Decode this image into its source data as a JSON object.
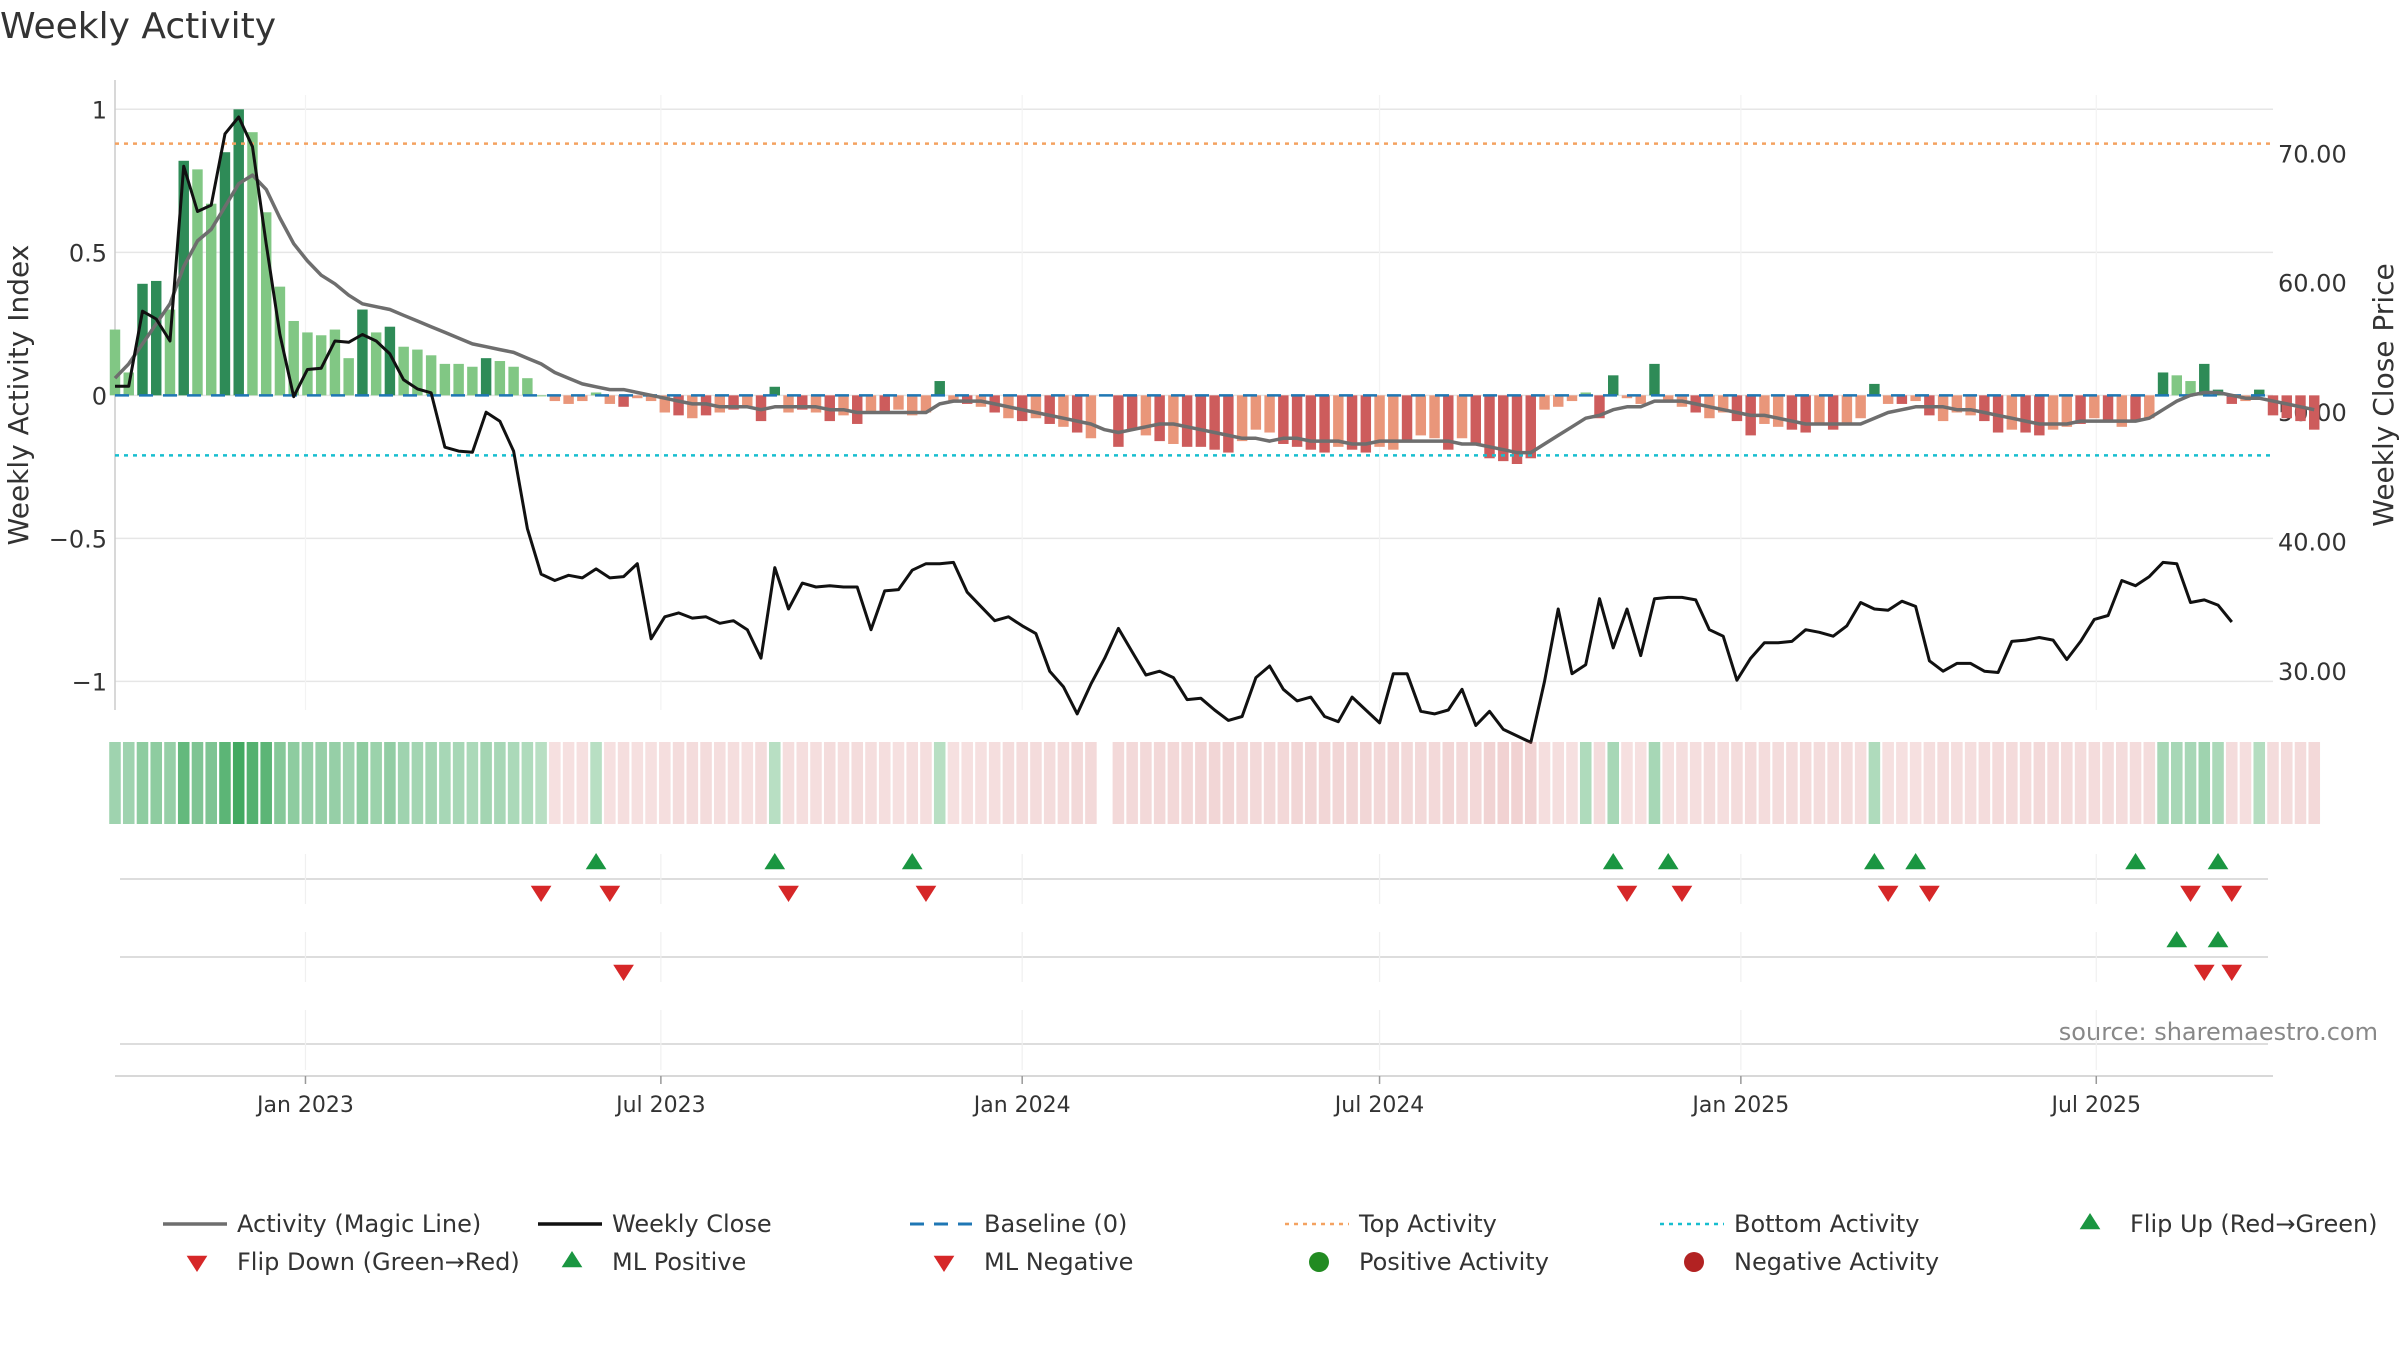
{
  "chart_data": {
    "type": "bar",
    "title": "Weekly Activity",
    "ylabel": "Weekly Activity Index",
    "y2label": "Weekly Close Price",
    "xlabel": "",
    "source": "source: sharemaestro.com",
    "ylim": [
      -1.1,
      1.05
    ],
    "y2lim": [
      27.0,
      74.5
    ],
    "yticks": [
      {
        "v": 1,
        "label": "1"
      },
      {
        "v": 0.5,
        "label": "0.5"
      },
      {
        "v": 0,
        "label": "0"
      },
      {
        "v": -0.5,
        "label": "−0.5"
      },
      {
        "v": -1,
        "label": "−1"
      }
    ],
    "y2ticks": [
      {
        "v": 70,
        "label": "70.00"
      },
      {
        "v": 60,
        "label": "60.00"
      },
      {
        "v": 50,
        "label": "50.00"
      },
      {
        "v": 40,
        "label": "40.00"
      },
      {
        "v": 30,
        "label": "30.00"
      }
    ],
    "x_range": [
      "2022-09-26",
      "2025-09-29"
    ],
    "xticks": [
      {
        "date": "2023-01-01",
        "label": "Jan 2023"
      },
      {
        "date": "2023-07-01",
        "label": "Jul 2023"
      },
      {
        "date": "2024-01-01",
        "label": "Jan 2024"
      },
      {
        "date": "2024-07-01",
        "label": "Jul 2024"
      },
      {
        "date": "2025-01-01",
        "label": "Jan 2025"
      },
      {
        "date": "2025-07-01",
        "label": "Jul 2025"
      }
    ],
    "start_date": "2022-09-26",
    "week_step_days": 7,
    "gap_weeks": [
      72
    ],
    "top_activity": 0.88,
    "bottom_activity": -0.21,
    "baseline": 0,
    "activity": [
      0.23,
      0.08,
      0.39,
      0.4,
      0.3,
      0.82,
      0.79,
      0.67,
      0.85,
      1.0,
      0.92,
      0.64,
      0.38,
      0.26,
      0.22,
      0.21,
      0.23,
      0.13,
      0.3,
      0.22,
      0.24,
      0.17,
      0.16,
      0.14,
      0.11,
      0.11,
      0.1,
      0.13,
      0.12,
      0.1,
      0.06,
      0.0,
      -0.02,
      -0.03,
      -0.02,
      0.01,
      -0.03,
      -0.04,
      -0.01,
      -0.02,
      -0.06,
      -0.07,
      -0.08,
      -0.07,
      -0.06,
      -0.05,
      -0.04,
      -0.09,
      0.03,
      -0.06,
      -0.05,
      -0.06,
      -0.09,
      -0.07,
      -0.1,
      -0.06,
      -0.06,
      -0.05,
      -0.07,
      -0.06,
      0.05,
      -0.02,
      -0.03,
      -0.04,
      -0.06,
      -0.08,
      -0.09,
      -0.08,
      -0.1,
      -0.11,
      -0.13,
      -0.15,
      -0.17,
      -0.18,
      -0.12,
      -0.14,
      -0.16,
      -0.17,
      -0.18,
      -0.18,
      -0.19,
      -0.2,
      -0.16,
      -0.12,
      -0.13,
      -0.17,
      -0.18,
      -0.19,
      -0.2,
      -0.18,
      -0.19,
      -0.2,
      -0.18,
      -0.19,
      -0.16,
      -0.14,
      -0.15,
      -0.19,
      -0.15,
      -0.17,
      -0.22,
      -0.23,
      -0.24,
      -0.22,
      -0.05,
      -0.04,
      -0.02,
      0.01,
      -0.08,
      0.07,
      -0.01,
      -0.03,
      0.11,
      -0.02,
      -0.04,
      -0.06,
      -0.08,
      -0.06,
      -0.09,
      -0.14,
      -0.1,
      -0.11,
      -0.12,
      -0.13,
      -0.1,
      -0.12,
      -0.1,
      -0.08,
      0.04,
      -0.03,
      -0.03,
      -0.02,
      -0.07,
      -0.09,
      -0.06,
      -0.07,
      -0.09,
      -0.13,
      -0.12,
      -0.13,
      -0.14,
      -0.12,
      -0.11,
      -0.1,
      -0.08,
      -0.09,
      -0.11,
      -0.09,
      -0.08,
      0.08,
      0.07,
      0.05,
      0.11,
      0.02,
      -0.03,
      -0.02,
      0.02,
      -0.07,
      -0.08,
      -0.09,
      -0.12
    ],
    "activity_category": [
      "pos",
      "pos",
      "ml_pos",
      "ml_pos",
      "pos",
      "ml_pos",
      "pos",
      "pos",
      "ml_pos",
      "ml_pos",
      "pos",
      "pos",
      "pos",
      "pos",
      "pos",
      "pos",
      "pos",
      "pos",
      "ml_pos",
      "pos",
      "ml_pos",
      "pos",
      "pos",
      "pos",
      "pos",
      "pos",
      "pos",
      "ml_pos",
      "pos",
      "pos",
      "pos",
      "pos",
      "neg",
      "neg",
      "neg",
      "pos",
      "neg",
      "ml_neg",
      "neg",
      "neg",
      "neg",
      "ml_neg",
      "neg",
      "ml_neg",
      "neg",
      "ml_neg",
      "neg",
      "ml_neg",
      "ml_pos",
      "neg",
      "ml_neg",
      "neg",
      "ml_neg",
      "neg",
      "ml_neg",
      "neg",
      "ml_neg",
      "neg",
      "neg",
      "neg",
      "ml_pos",
      "neg",
      "ml_neg",
      "neg",
      "ml_neg",
      "neg",
      "ml_neg",
      "neg",
      "ml_neg",
      "neg",
      "ml_neg",
      "neg",
      "ml_neg",
      "ml_neg",
      "ml_neg",
      "neg",
      "ml_neg",
      "neg",
      "ml_neg",
      "ml_neg",
      "ml_neg",
      "ml_neg",
      "neg",
      "neg",
      "neg",
      "ml_neg",
      "ml_neg",
      "ml_neg",
      "ml_neg",
      "neg",
      "ml_neg",
      "ml_neg",
      "neg",
      "neg",
      "ml_neg",
      "neg",
      "neg",
      "ml_neg",
      "neg",
      "ml_neg",
      "ml_neg",
      "ml_neg",
      "ml_neg",
      "ml_neg",
      "neg",
      "neg",
      "neg",
      "pos",
      "ml_neg",
      "ml_pos",
      "neg",
      "neg",
      "ml_pos",
      "neg",
      "neg",
      "ml_neg",
      "neg",
      "neg",
      "ml_neg",
      "ml_neg",
      "neg",
      "neg",
      "ml_neg",
      "ml_neg",
      "neg",
      "ml_neg",
      "neg",
      "neg",
      "ml_pos",
      "neg",
      "ml_neg",
      "neg",
      "ml_neg",
      "neg",
      "neg",
      "neg",
      "ml_neg",
      "ml_neg",
      "neg",
      "ml_neg",
      "ml_neg",
      "neg",
      "neg",
      "ml_neg",
      "neg",
      "ml_neg",
      "neg",
      "ml_neg",
      "neg",
      "ml_pos",
      "pos",
      "pos",
      "ml_pos",
      "ml_pos",
      "ml_neg",
      "neg",
      "ml_pos",
      "ml_neg",
      "ml_neg",
      "ml_neg",
      "ml_neg"
    ],
    "magic_line": [
      0.06,
      0.11,
      0.18,
      0.25,
      0.32,
      0.45,
      0.54,
      0.58,
      0.66,
      0.74,
      0.77,
      0.72,
      0.62,
      0.53,
      0.47,
      0.42,
      0.39,
      0.35,
      0.32,
      0.31,
      0.3,
      0.28,
      0.26,
      0.24,
      0.22,
      0.2,
      0.18,
      0.17,
      0.16,
      0.15,
      0.13,
      0.11,
      0.08,
      0.06,
      0.04,
      0.03,
      0.02,
      0.02,
      0.01,
      0.0,
      -0.01,
      -0.02,
      -0.03,
      -0.03,
      -0.04,
      -0.04,
      -0.04,
      -0.05,
      -0.04,
      -0.04,
      -0.04,
      -0.04,
      -0.05,
      -0.05,
      -0.06,
      -0.06,
      -0.06,
      -0.06,
      -0.06,
      -0.06,
      -0.03,
      -0.02,
      -0.02,
      -0.02,
      -0.03,
      -0.04,
      -0.05,
      -0.06,
      -0.07,
      -0.08,
      -0.09,
      -0.1,
      -0.12,
      -0.13,
      -0.12,
      -0.11,
      -0.1,
      -0.1,
      -0.11,
      -0.12,
      -0.13,
      -0.14,
      -0.15,
      -0.15,
      -0.16,
      -0.15,
      -0.15,
      -0.16,
      -0.16,
      -0.16,
      -0.17,
      -0.17,
      -0.16,
      -0.16,
      -0.16,
      -0.16,
      -0.16,
      -0.16,
      -0.17,
      -0.17,
      -0.18,
      -0.19,
      -0.2,
      -0.2,
      -0.17,
      -0.14,
      -0.11,
      -0.08,
      -0.07,
      -0.05,
      -0.04,
      -0.04,
      -0.02,
      -0.02,
      -0.02,
      -0.03,
      -0.04,
      -0.05,
      -0.06,
      -0.07,
      -0.07,
      -0.08,
      -0.09,
      -0.1,
      -0.1,
      -0.1,
      -0.1,
      -0.1,
      -0.08,
      -0.06,
      -0.05,
      -0.04,
      -0.04,
      -0.04,
      -0.05,
      -0.05,
      -0.06,
      -0.07,
      -0.08,
      -0.09,
      -0.1,
      -0.1,
      -0.1,
      -0.09,
      -0.09,
      -0.09,
      -0.09,
      -0.09,
      -0.08,
      -0.05,
      -0.02,
      0.0,
      0.01,
      0.01,
      0.0,
      -0.01,
      -0.01,
      -0.02,
      -0.03,
      -0.04,
      -0.05
    ],
    "weekly_close": [
      52.0,
      52.0,
      57.8,
      57.2,
      55.5,
      69.0,
      65.5,
      66.0,
      71.5,
      72.8,
      70.5,
      63.0,
      56.0,
      51.2,
      53.3,
      53.4,
      55.5,
      55.4,
      56.0,
      55.5,
      54.5,
      52.5,
      51.8,
      51.5,
      47.3,
      47.0,
      46.9,
      50.0,
      49.3,
      47.0,
      41.0,
      37.5,
      37.0,
      37.4,
      37.2,
      37.9,
      37.2,
      37.3,
      38.3,
      32.5,
      34.2,
      34.5,
      34.1,
      34.2,
      33.7,
      33.9,
      33.2,
      31.0,
      38.0,
      34.8,
      36.8,
      36.5,
      36.6,
      36.5,
      36.5,
      33.2,
      36.2,
      36.3,
      37.8,
      38.3,
      38.3,
      38.4,
      36.1,
      35.0,
      33.9,
      34.2,
      33.5,
      32.9,
      30.0,
      28.8,
      26.7,
      29.0,
      31.0,
      33.3,
      31.5,
      29.7,
      30.0,
      29.5,
      27.8,
      27.9,
      27.0,
      26.2,
      26.5,
      29.5,
      30.4,
      28.6,
      27.7,
      28.0,
      26.5,
      26.1,
      28.0,
      27.0,
      26.0,
      29.8,
      29.8,
      26.9,
      26.7,
      27.0,
      28.6,
      25.8,
      26.9,
      25.5,
      25.0,
      24.5,
      29.2,
      34.8,
      29.8,
      30.5,
      35.6,
      31.8,
      34.8,
      31.2,
      35.6,
      35.7,
      35.7,
      35.5,
      33.2,
      32.7,
      29.3,
      31.0,
      32.2,
      32.2,
      32.3,
      33.2,
      33.0,
      32.7,
      33.5,
      35.3,
      34.8,
      34.7,
      35.4,
      35.0,
      30.8,
      30.0,
      30.6,
      30.6,
      30.0,
      29.9,
      32.3,
      32.4,
      32.6,
      32.4,
      30.9,
      32.3,
      34.0,
      34.3,
      37.0,
      36.6,
      37.3,
      38.4,
      38.3,
      35.3,
      35.5,
      35.1,
      33.8
    ],
    "heat_strip": [
      0.35,
      0.35,
      0.45,
      0.45,
      0.4,
      0.7,
      0.55,
      0.55,
      0.75,
      0.9,
      0.8,
      0.75,
      0.5,
      0.45,
      0.4,
      0.4,
      0.4,
      0.35,
      0.45,
      0.38,
      0.42,
      0.35,
      0.33,
      0.32,
      0.3,
      0.3,
      0.28,
      0.33,
      0.3,
      0.28,
      0.25,
      0.2,
      -0.2,
      -0.2,
      -0.2,
      0.2,
      -0.2,
      -0.22,
      -0.2,
      -0.2,
      -0.22,
      -0.25,
      -0.25,
      -0.25,
      -0.22,
      -0.22,
      -0.2,
      -0.25,
      0.2,
      -0.22,
      -0.22,
      -0.22,
      -0.25,
      -0.22,
      -0.25,
      -0.22,
      -0.22,
      -0.2,
      -0.22,
      -0.22,
      0.2,
      -0.2,
      -0.2,
      -0.2,
      -0.22,
      -0.25,
      -0.25,
      -0.25,
      -0.25,
      -0.28,
      -0.3,
      -0.3,
      -0.3,
      -0.3,
      -0.3,
      -0.3,
      -0.32,
      -0.33,
      -0.33,
      -0.35,
      -0.35,
      -0.35,
      -0.3,
      -0.3,
      -0.3,
      -0.33,
      -0.35,
      -0.35,
      -0.35,
      -0.35,
      -0.35,
      -0.35,
      -0.33,
      -0.35,
      -0.3,
      -0.3,
      -0.3,
      -0.35,
      -0.3,
      -0.33,
      -0.38,
      -0.4,
      -0.4,
      -0.38,
      -0.22,
      -0.22,
      -0.2,
      0.25,
      -0.25,
      0.3,
      -0.2,
      -0.2,
      0.3,
      -0.2,
      -0.22,
      -0.22,
      -0.25,
      -0.22,
      -0.25,
      -0.28,
      -0.25,
      -0.25,
      -0.25,
      -0.28,
      -0.25,
      -0.25,
      -0.25,
      -0.22,
      0.25,
      -0.2,
      -0.2,
      -0.2,
      -0.22,
      -0.25,
      -0.22,
      -0.22,
      -0.25,
      -0.28,
      -0.28,
      -0.28,
      -0.3,
      -0.28,
      -0.28,
      -0.25,
      -0.25,
      -0.25,
      -0.25,
      -0.25,
      -0.25,
      0.3,
      0.3,
      0.3,
      0.35,
      0.28,
      -0.25,
      -0.22,
      0.22,
      -0.25,
      -0.25,
      -0.28,
      -0.3
    ],
    "flip_row_1": {
      "up": [
        35,
        48,
        58,
        109,
        113,
        128,
        131,
        147,
        153
      ],
      "down": [
        31,
        36,
        49,
        59,
        110,
        114,
        129,
        132,
        151,
        154
      ]
    },
    "flip_row_2": {
      "up": [
        150,
        153
      ],
      "down": [
        37,
        152,
        154
      ]
    },
    "colors": {
      "ml_pos": "#2e8b57",
      "pos": "#81c784",
      "ml_neg": "#cd5c5c",
      "neg": "#e9967a",
      "magic_line": "#6e6e6e",
      "weekly_close": "#111111",
      "baseline": "#1f77b4",
      "top_activity": "#f4a261",
      "bottom_activity": "#17becf",
      "flip_up": "#1a9641",
      "flip_down": "#d62728",
      "positive_activity": "#228b22",
      "negative_activity": "#b22222",
      "grid": "#e6e6e6",
      "source": "#888888"
    },
    "legend": {
      "placement": "bottom",
      "items": [
        {
          "key": "magic_line",
          "label": "Activity (Magic Line)",
          "symbol": "line"
        },
        {
          "key": "weekly_close",
          "label": "Weekly Close",
          "symbol": "line"
        },
        {
          "key": "baseline",
          "label": "Baseline (0)",
          "symbol": "dashed"
        },
        {
          "key": "top_activity",
          "label": "Top Activity",
          "symbol": "dotted"
        },
        {
          "key": "bottom_activity",
          "label": "Bottom Activity",
          "symbol": "dotted"
        },
        {
          "key": "flip_up",
          "label": "Flip Up (Red→Green)",
          "symbol": "triangle-up"
        },
        {
          "key": "flip_down",
          "label": "Flip Down (Green→Red)",
          "symbol": "triangle-down"
        },
        {
          "key": "flip_up",
          "label": "ML Positive",
          "symbol": "triangle-up"
        },
        {
          "key": "flip_down",
          "label": "ML Negative",
          "symbol": "triangle-down"
        },
        {
          "key": "positive_activity",
          "label": "Positive Activity",
          "symbol": "circle"
        },
        {
          "key": "negative_activity",
          "label": "Negative Activity",
          "symbol": "circle"
        }
      ]
    }
  }
}
